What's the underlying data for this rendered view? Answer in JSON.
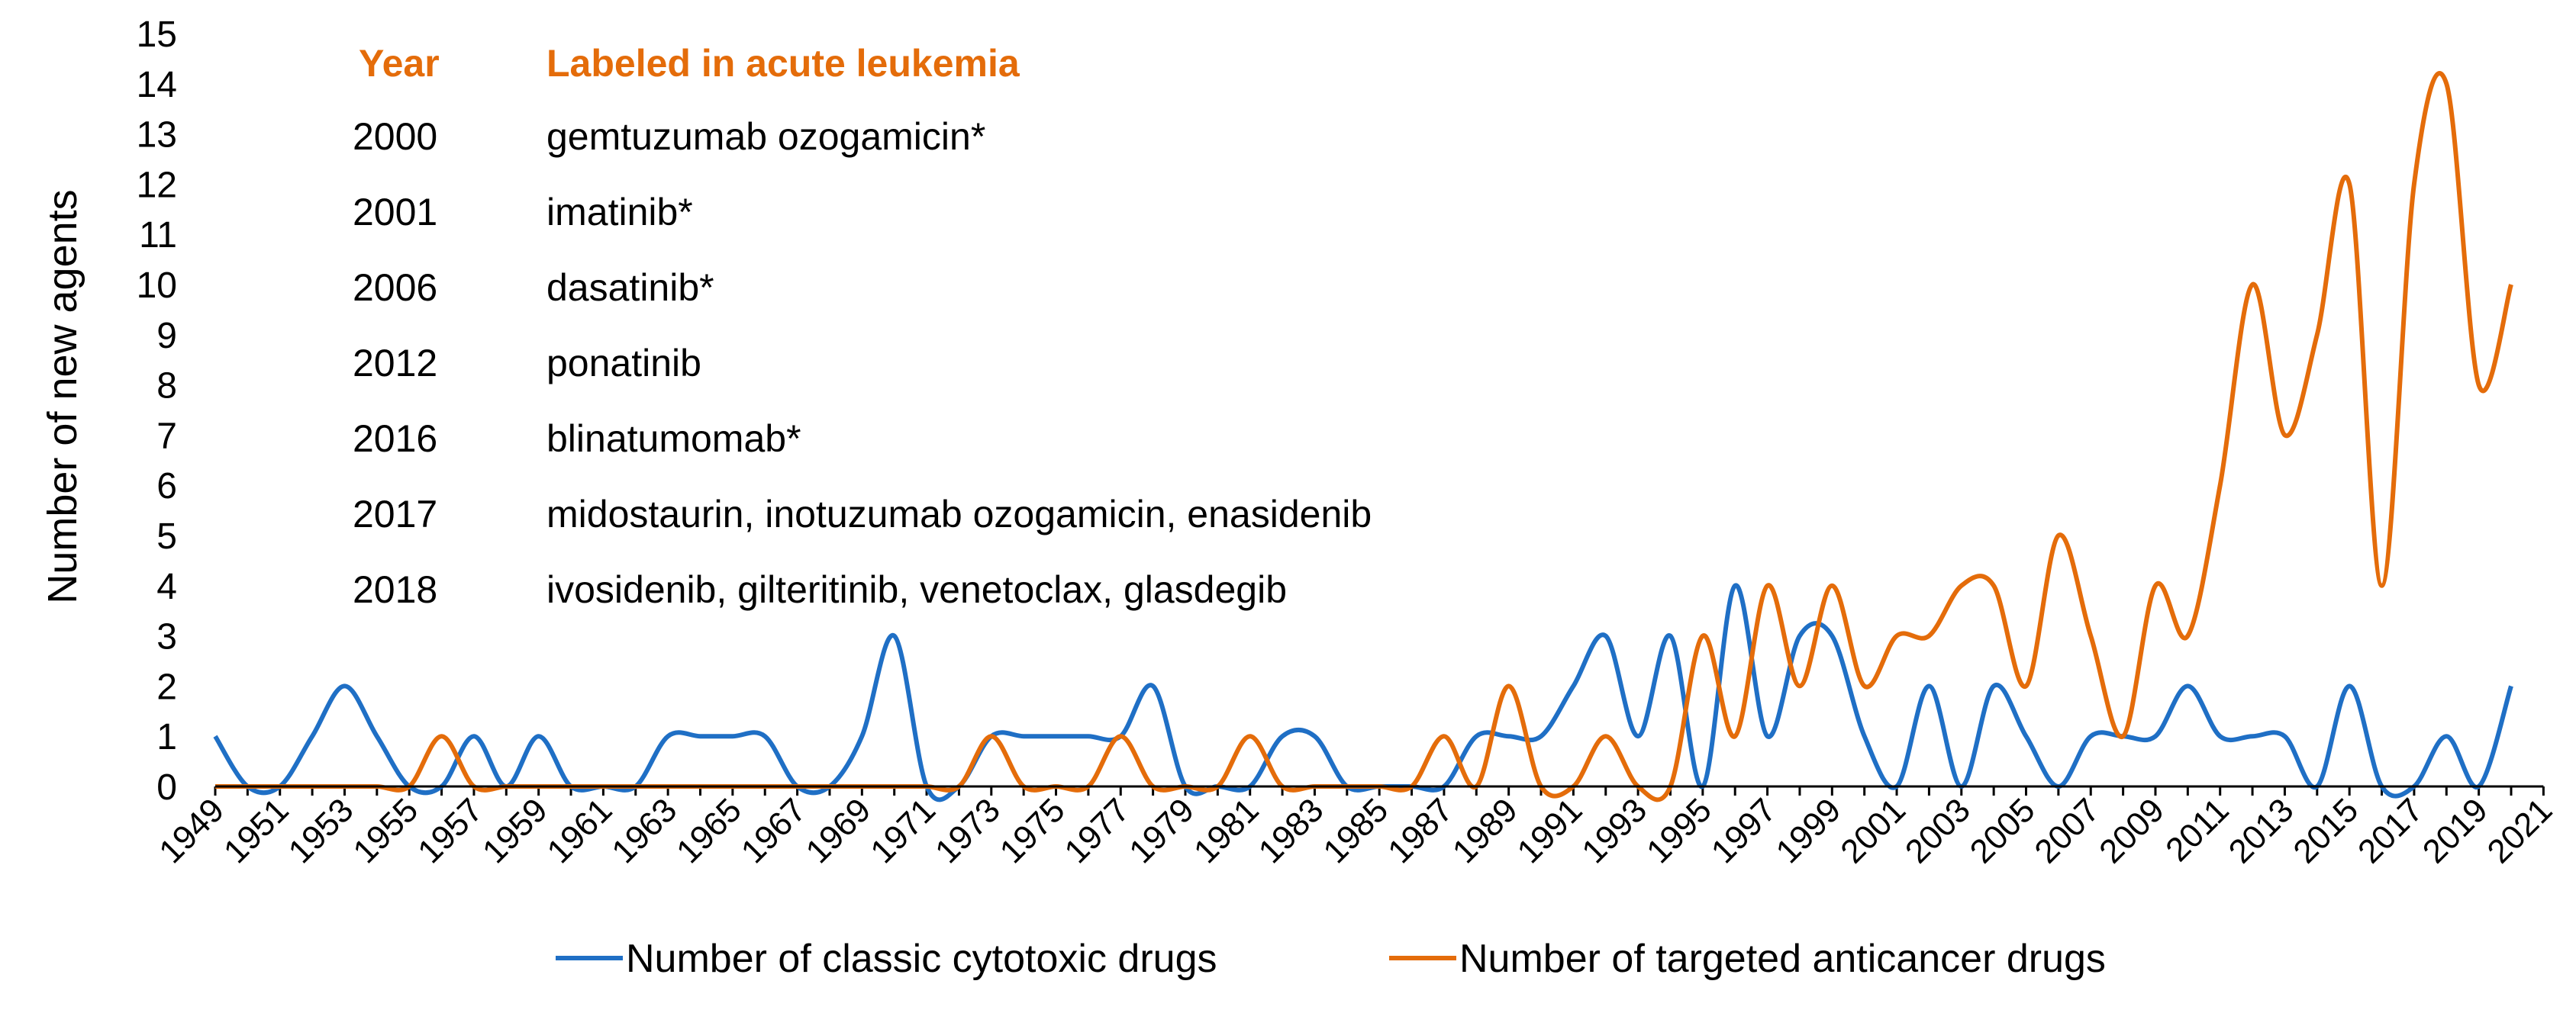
{
  "colors": {
    "cytotoxic": "#1f6fc5",
    "targeted": "#e46c0a",
    "axis": "#000000"
  },
  "chart_data": {
    "type": "line",
    "title": "",
    "xlabel": "",
    "ylabel": "Number of new agents",
    "ylim": [
      0,
      15
    ],
    "xlim": [
      1949,
      2020
    ],
    "grid": false,
    "legend": "bottom",
    "x_tick_labels": [
      "1949",
      "1951",
      "1953",
      "1955",
      "1957",
      "1959",
      "1961",
      "1963",
      "1965",
      "1967",
      "1969",
      "1971",
      "1973",
      "1975",
      "1977",
      "1979",
      "1981",
      "1983",
      "1985",
      "1987",
      "1989",
      "1991",
      "1993",
      "1995",
      "1997",
      "1999",
      "2001",
      "2003",
      "2005",
      "2007",
      "2009",
      "2011",
      "2013",
      "2015",
      "2017",
      "2019",
      "2021"
    ],
    "y_tick_labels": [
      "0",
      "1",
      "2",
      "3",
      "4",
      "5",
      "6",
      "7",
      "8",
      "9",
      "10",
      "11",
      "12",
      "13",
      "14",
      "15"
    ],
    "x": [
      1949,
      1950,
      1951,
      1952,
      1953,
      1954,
      1955,
      1956,
      1957,
      1958,
      1959,
      1960,
      1961,
      1962,
      1963,
      1964,
      1965,
      1966,
      1967,
      1968,
      1969,
      1970,
      1971,
      1972,
      1973,
      1974,
      1975,
      1976,
      1977,
      1978,
      1979,
      1980,
      1981,
      1982,
      1983,
      1984,
      1985,
      1986,
      1987,
      1988,
      1989,
      1990,
      1991,
      1992,
      1993,
      1994,
      1995,
      1996,
      1997,
      1998,
      1999,
      2000,
      2001,
      2002,
      2003,
      2004,
      2005,
      2006,
      2007,
      2008,
      2009,
      2010,
      2011,
      2012,
      2013,
      2014,
      2015,
      2016,
      2017,
      2018,
      2019,
      2020
    ],
    "series": [
      {
        "name": "Number of classic cytotoxic drugs",
        "color": "#1f6fc5",
        "values": [
          1,
          0,
          0,
          1,
          2,
          1,
          0,
          0,
          1,
          0,
          1,
          0,
          0,
          0,
          1,
          1,
          1,
          1,
          0,
          0,
          1,
          3,
          0,
          0,
          1,
          1,
          1,
          1,
          1,
          2,
          0,
          0,
          0,
          1,
          1,
          0,
          0,
          0,
          0,
          1,
          1,
          1,
          2,
          3,
          1,
          3,
          0,
          4,
          1,
          3,
          3,
          1,
          0,
          2,
          0,
          2,
          1,
          0,
          1,
          1,
          1,
          2,
          1,
          1,
          1,
          0,
          2,
          0,
          0,
          1,
          0,
          2
        ]
      },
      {
        "name": "Number of targeted anticancer drugs",
        "color": "#e46c0a",
        "values": [
          0,
          0,
          0,
          0,
          0,
          0,
          0,
          1,
          0,
          0,
          0,
          0,
          0,
          0,
          0,
          0,
          0,
          0,
          0,
          0,
          0,
          0,
          0,
          0,
          1,
          0,
          0,
          0,
          1,
          0,
          0,
          0,
          1,
          0,
          0,
          0,
          0,
          0,
          1,
          0,
          2,
          0,
          0,
          1,
          0,
          0,
          3,
          1,
          4,
          2,
          4,
          2,
          3,
          3,
          4,
          4,
          2,
          5,
          3,
          1,
          4,
          3,
          6,
          10,
          7,
          9,
          12,
          4,
          12,
          14,
          8,
          10
        ]
      }
    ],
    "annotation": {
      "header": {
        "year": "Year",
        "label": "Labeled in acute leukemia",
        "color": "#e46c0a"
      },
      "rows": [
        {
          "year": "2000",
          "drugs": "gemtuzumab ozogamicin*"
        },
        {
          "year": "2001",
          "drugs": "imatinib*"
        },
        {
          "year": "2006",
          "drugs": "dasatinib*"
        },
        {
          "year": "2012",
          "drugs": "ponatinib"
        },
        {
          "year": "2016",
          "drugs": "blinatumomab*"
        },
        {
          "year": "2017",
          "drugs": "midostaurin, inotuzumab ozogamicin, enasidenib"
        },
        {
          "year": "2018",
          "drugs": "ivosidenib, gilteritinib, venetoclax, glasdegib"
        }
      ]
    }
  }
}
